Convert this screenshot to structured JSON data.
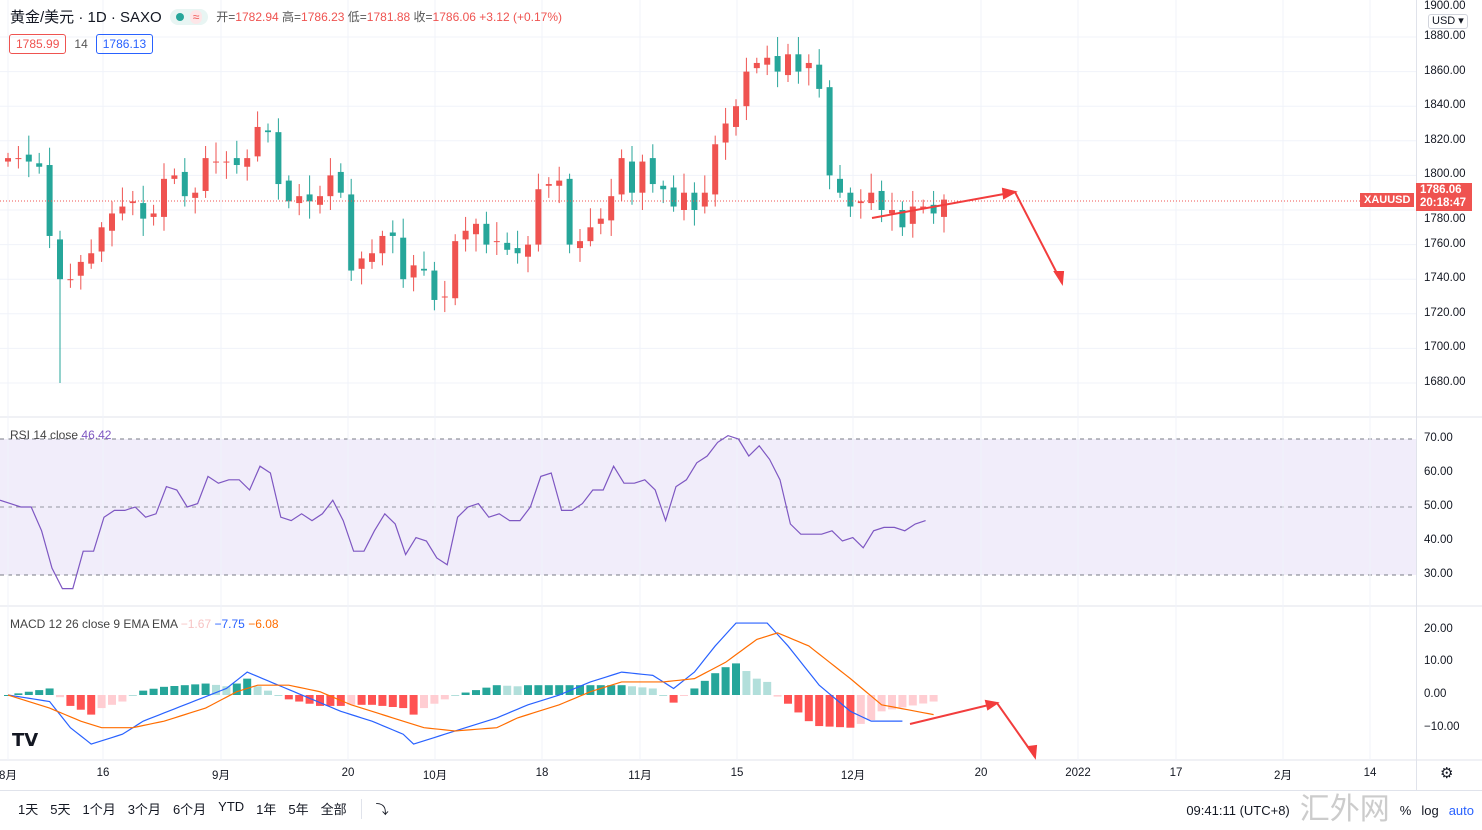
{
  "header": {
    "symbol": "黄金/美元 · 1D · SAXO",
    "open_label": "开=",
    "open": "1782.94",
    "high_label": "高=",
    "high": "1786.23",
    "low_label": "低=",
    "low": "1781.88",
    "close_label": "收=",
    "close": "1786.06",
    "change": "+3.12 (+0.17%)",
    "bid": "1785.99",
    "spread": "14",
    "ask": "1786.13",
    "wave_icon": "≈"
  },
  "price_axis": {
    "currency": "USD ▾",
    "labels": [
      "1900.00",
      "1880.00",
      "1860.00",
      "1840.00",
      "1820.00",
      "1800.00",
      "1780.00",
      "1760.00",
      "1740.00",
      "1720.00",
      "1700.00",
      "1680.00"
    ],
    "symbol_tag": "XAUUSD",
    "last_price": "1786.06",
    "countdown": "20:18:47"
  },
  "rsi": {
    "legend": "RSI 14 close",
    "value": "46.42",
    "labels": [
      "70.00",
      "60.00",
      "50.00",
      "40.00",
      "30.00"
    ],
    "color": "#7e57c2"
  },
  "macd": {
    "legend": "MACD 12 26 close 9 EMA EMA",
    "hist": "−1.67",
    "macd": "−7.75",
    "signal": "−6.08",
    "labels": [
      "20.00",
      "10.00",
      "0.00",
      "−10.00"
    ]
  },
  "time_axis": [
    "8月",
    "16",
    "9月",
    "20",
    "10月",
    "18",
    "11月",
    "15",
    "12月",
    "20",
    "2022",
    "17",
    "2月",
    "14"
  ],
  "toolbar": {
    "ranges": [
      "1天",
      "5天",
      "1个月",
      "3个月",
      "6个月",
      "YTD",
      "1年",
      "5年",
      "全部"
    ],
    "goto_icon": "⤵",
    "clock": "09:41:11 (UTC+8)",
    "percent": "%",
    "log": "log",
    "auto": "auto"
  },
  "watermark": "汇外网",
  "colors": {
    "up": "#ef5350",
    "down": "#26a69a"
  },
  "chart_data": {
    "type": "candlestick",
    "closes": [
      1810,
      1810,
      1808,
      1805,
      1765,
      1740,
      1740,
      1750,
      1755,
      1770,
      1778,
      1782,
      1785,
      1775,
      1778,
      1798,
      1800,
      1788,
      1790,
      1810,
      1808,
      1808,
      1806,
      1810,
      1828,
      1825,
      1795,
      1785,
      1788,
      1785,
      1788,
      1800,
      1790,
      1745,
      1752,
      1755,
      1765,
      1765,
      1740,
      1748,
      1745,
      1728,
      1730,
      1762,
      1768,
      1772,
      1760,
      1762,
      1757,
      1755,
      1760,
      1792,
      1795,
      1797,
      1760,
      1762,
      1770,
      1775,
      1788,
      1810,
      1790,
      1808,
      1795,
      1792,
      1782,
      1790,
      1780,
      1790,
      1818,
      1830,
      1840,
      1860,
      1865,
      1868,
      1860,
      1870,
      1860,
      1865,
      1850,
      1800,
      1790,
      1782,
      1785,
      1790,
      1780,
      1780,
      1770,
      1782,
      1782,
      1778,
      1786
    ],
    "ylim": [
      1670,
      1900
    ],
    "rsi": [
      52,
      51,
      50,
      50,
      43,
      32,
      26,
      26,
      37,
      37,
      47,
      49,
      49,
      50,
      47,
      48,
      56,
      55,
      50,
      51,
      59,
      57,
      58,
      58,
      55,
      62,
      60,
      47,
      46,
      48,
      46,
      48,
      52,
      46,
      37,
      37,
      43,
      48,
      45,
      36,
      41,
      40,
      35,
      33,
      47,
      50,
      51,
      47,
      48,
      46,
      46,
      50,
      59,
      60,
      49,
      49,
      51,
      55,
      55,
      62,
      57,
      57,
      58,
      55,
      46,
      56,
      58,
      63,
      65,
      69,
      71,
      70,
      65,
      68,
      64,
      58,
      45,
      42,
      42,
      42,
      43,
      40,
      41,
      38,
      43,
      44,
      44,
      43,
      45,
      46
    ],
    "macd": [
      [
        0,
        0
      ],
      [
        4,
        -2
      ],
      [
        6,
        -10
      ],
      [
        8,
        -15
      ],
      [
        11,
        -12
      ],
      [
        13,
        -8
      ],
      [
        17,
        -3
      ],
      [
        21,
        2
      ],
      [
        23,
        7
      ],
      [
        26,
        3
      ],
      [
        29,
        -1
      ],
      [
        32,
        -5
      ],
      [
        35,
        -8
      ],
      [
        38,
        -12
      ],
      [
        39,
        -15
      ],
      [
        42,
        -12
      ],
      [
        45,
        -9
      ],
      [
        47,
        -7
      ],
      [
        50,
        -3
      ],
      [
        53,
        0
      ],
      [
        56,
        4
      ],
      [
        59,
        7
      ],
      [
        62,
        6
      ],
      [
        64,
        2
      ],
      [
        66,
        7
      ],
      [
        68,
        15
      ],
      [
        70,
        22
      ],
      [
        73,
        22
      ],
      [
        75,
        15
      ],
      [
        78,
        3
      ],
      [
        81,
        -5
      ],
      [
        83,
        -8
      ],
      [
        86,
        -8
      ]
    ],
    "signal": [
      [
        0,
        0
      ],
      [
        4,
        -4
      ],
      [
        7,
        -8
      ],
      [
        9,
        -10
      ],
      [
        12,
        -10
      ],
      [
        15,
        -8
      ],
      [
        19,
        -4
      ],
      [
        22,
        1
      ],
      [
        24,
        3
      ],
      [
        27,
        3
      ],
      [
        30,
        1
      ],
      [
        33,
        -3
      ],
      [
        36,
        -6
      ],
      [
        40,
        -10
      ],
      [
        43,
        -11
      ],
      [
        47,
        -10
      ],
      [
        49,
        -7
      ],
      [
        53,
        -3
      ],
      [
        56,
        1
      ],
      [
        59,
        4
      ],
      [
        63,
        4
      ],
      [
        66,
        5
      ],
      [
        69,
        10
      ],
      [
        72,
        17
      ],
      [
        74,
        19
      ],
      [
        77,
        15
      ],
      [
        81,
        5
      ],
      [
        84,
        -3
      ],
      [
        89,
        -6
      ]
    ]
  }
}
